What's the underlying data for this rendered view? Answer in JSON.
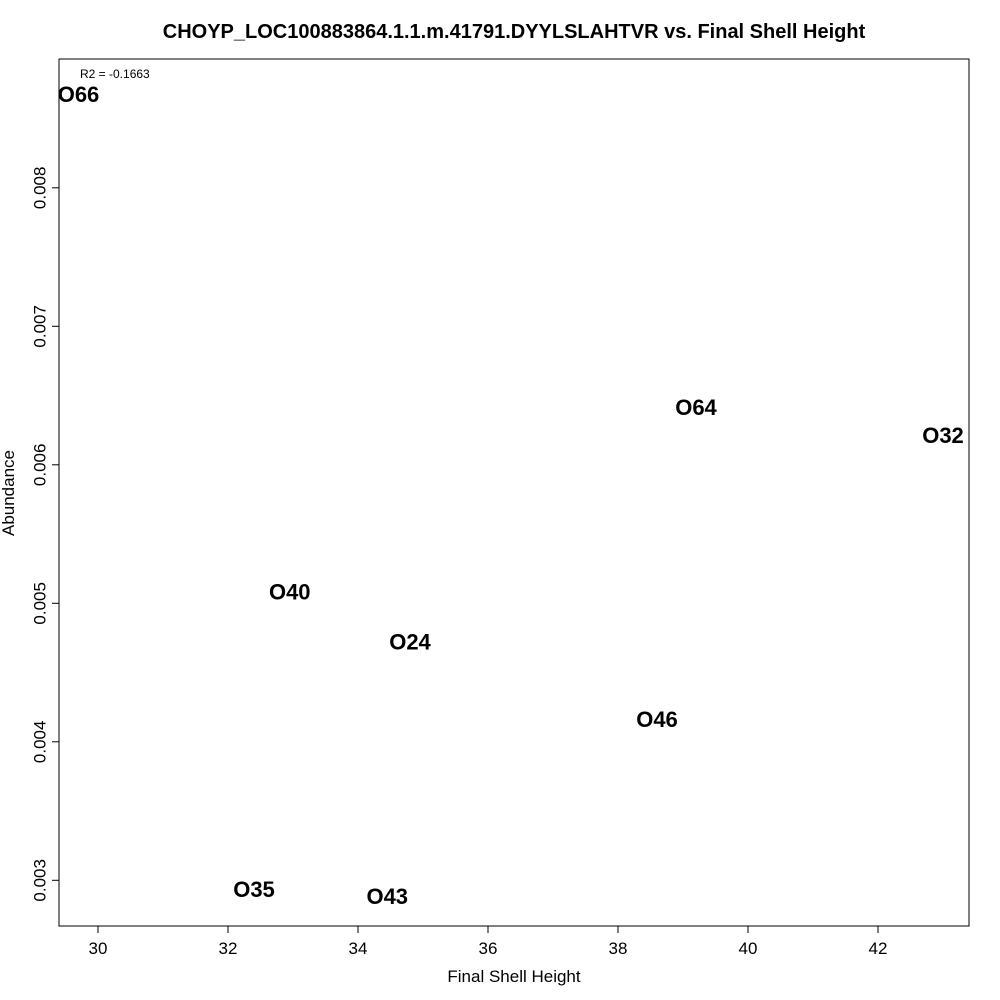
{
  "chart_data": {
    "type": "scatter",
    "title": "CHOYP_LOC100883864.1.1.m.41791.DYYLSLAHTVR vs. Final Shell Height",
    "xlabel": "Final Shell Height",
    "ylabel": "Abundance",
    "annotation": "R2 = -0.1663",
    "xlim": [
      29.4,
      43.4
    ],
    "ylim": [
      0.00267,
      0.00893
    ],
    "xticks": [
      30,
      32,
      34,
      36,
      38,
      40,
      42
    ],
    "xtick_labels": [
      "30",
      "32",
      "34",
      "36",
      "38",
      "40",
      "42"
    ],
    "yticks": [
      0.003,
      0.004,
      0.005,
      0.006,
      0.007,
      0.008
    ],
    "ytick_labels": [
      "0.003",
      "0.004",
      "0.005",
      "0.006",
      "0.007",
      "0.008"
    ],
    "grid": false,
    "points": [
      {
        "label": "O66",
        "x": 29.7,
        "y": 0.00866
      },
      {
        "label": "O64",
        "x": 39.2,
        "y": 0.0064
      },
      {
        "label": "O32",
        "x": 43.0,
        "y": 0.0062
      },
      {
        "label": "O40",
        "x": 32.95,
        "y": 0.00507
      },
      {
        "label": "O24",
        "x": 34.8,
        "y": 0.00471
      },
      {
        "label": "O46",
        "x": 38.6,
        "y": 0.00415
      },
      {
        "label": "O35",
        "x": 32.4,
        "y": 0.00292
      },
      {
        "label": "O43",
        "x": 34.45,
        "y": 0.00287
      }
    ]
  }
}
